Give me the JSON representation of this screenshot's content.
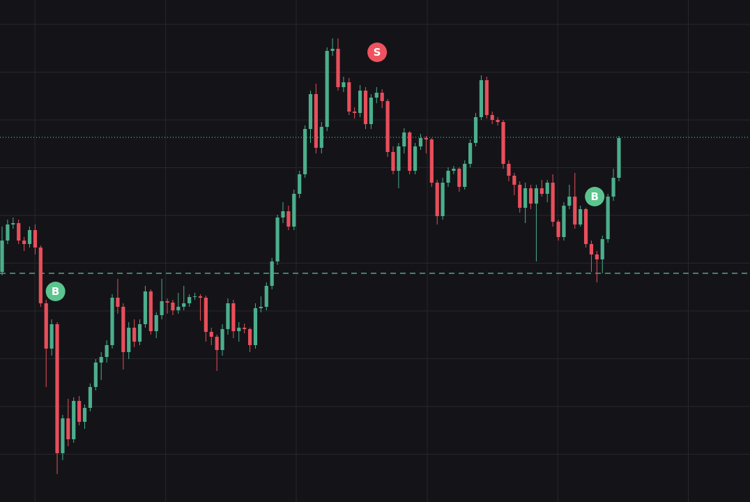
{
  "chart_data": {
    "type": "candlestick",
    "up_color": "#4cae8c",
    "down_color": "#e84f5b",
    "grid": true,
    "xlim": [
      -0.38,
      135.8
    ],
    "ylim": [
      0,
      720
    ],
    "xticks": [
      5.95,
      29.7,
      53.4,
      77.2,
      100.9,
      124.6
    ],
    "yticks": [
      68.5,
      137,
      205.5,
      274,
      342.5,
      411,
      479.5,
      548,
      616.5,
      685
    ],
    "candles": [
      [
        330,
        395,
        325,
        375
      ],
      [
        375,
        405,
        370,
        398
      ],
      [
        398,
        408,
        392,
        400
      ],
      [
        400,
        405,
        370,
        375
      ],
      [
        375,
        380,
        360,
        370
      ],
      [
        370,
        395,
        365,
        390
      ],
      [
        390,
        398,
        355,
        365
      ],
      [
        365,
        368,
        280,
        285
      ],
      [
        285,
        290,
        165,
        220
      ],
      [
        220,
        262,
        210,
        255
      ],
      [
        255,
        258,
        40,
        70
      ],
      [
        70,
        125,
        60,
        120
      ],
      [
        120,
        148,
        80,
        90
      ],
      [
        90,
        150,
        85,
        145
      ],
      [
        145,
        152,
        110,
        115
      ],
      [
        115,
        140,
        105,
        135
      ],
      [
        135,
        170,
        130,
        165
      ],
      [
        165,
        205,
        160,
        200
      ],
      [
        200,
        215,
        175,
        208
      ],
      [
        208,
        232,
        200,
        225
      ],
      [
        225,
        298,
        220,
        293
      ],
      [
        293,
        320,
        270,
        280
      ],
      [
        280,
        285,
        190,
        215
      ],
      [
        215,
        258,
        205,
        250
      ],
      [
        250,
        262,
        222,
        230
      ],
      [
        230,
        262,
        225,
        255
      ],
      [
        255,
        310,
        250,
        302
      ],
      [
        302,
        305,
        240,
        245
      ],
      [
        245,
        272,
        235,
        268
      ],
      [
        268,
        320,
        262,
        288
      ],
      [
        288,
        292,
        270,
        286
      ],
      [
        286,
        290,
        268,
        275
      ],
      [
        275,
        300,
        270,
        280
      ],
      [
        280,
        310,
        275,
        285
      ],
      [
        285,
        298,
        280,
        294
      ],
      [
        294,
        300,
        290,
        295
      ],
      [
        295,
        298,
        260,
        293
      ],
      [
        293,
        296,
        230,
        244
      ],
      [
        244,
        250,
        225,
        237
      ],
      [
        237,
        240,
        188,
        218
      ],
      [
        218,
        255,
        210,
        248
      ],
      [
        248,
        292,
        240,
        285
      ],
      [
        285,
        290,
        235,
        245
      ],
      [
        245,
        258,
        230,
        250
      ],
      [
        250,
        256,
        242,
        248
      ],
      [
        248,
        250,
        215,
        225
      ],
      [
        225,
        285,
        220,
        278
      ],
      [
        278,
        295,
        272,
        280
      ],
      [
        280,
        315,
        275,
        310
      ],
      [
        310,
        350,
        305,
        345
      ],
      [
        345,
        412,
        340,
        408
      ],
      [
        408,
        430,
        400,
        417
      ],
      [
        417,
        425,
        390,
        395
      ],
      [
        395,
        448,
        390,
        442
      ],
      [
        442,
        475,
        436,
        470
      ],
      [
        470,
        540,
        465,
        535
      ],
      [
        535,
        590,
        515,
        585
      ],
      [
        585,
        600,
        500,
        508
      ],
      [
        508,
        545,
        500,
        538
      ],
      [
        538,
        652,
        532,
        647
      ],
      [
        647,
        665,
        640,
        650
      ],
      [
        650,
        665,
        590,
        595
      ],
      [
        595,
        610,
        588,
        602
      ],
      [
        602,
        608,
        555,
        560
      ],
      [
        560,
        566,
        550,
        558
      ],
      [
        558,
        598,
        552,
        590
      ],
      [
        590,
        595,
        535,
        542
      ],
      [
        542,
        585,
        535,
        580
      ],
      [
        580,
        595,
        572,
        587
      ],
      [
        587,
        592,
        565,
        575
      ],
      [
        575,
        578,
        495,
        502
      ],
      [
        502,
        510,
        470,
        475
      ],
      [
        475,
        515,
        450,
        510
      ],
      [
        510,
        536,
        500,
        530
      ],
      [
        530,
        532,
        470,
        475
      ],
      [
        475,
        515,
        470,
        510
      ],
      [
        510,
        528,
        505,
        522
      ],
      [
        522,
        525,
        500,
        520
      ],
      [
        520,
        522,
        452,
        458
      ],
      [
        458,
        462,
        398,
        410
      ],
      [
        410,
        465,
        405,
        458
      ],
      [
        458,
        480,
        452,
        475
      ],
      [
        475,
        482,
        470,
        478
      ],
      [
        478,
        480,
        445,
        452
      ],
      [
        452,
        490,
        448,
        485
      ],
      [
        485,
        520,
        480,
        515
      ],
      [
        515,
        558,
        510,
        552
      ],
      [
        552,
        612,
        548,
        605
      ],
      [
        605,
        610,
        550,
        555
      ],
      [
        555,
        560,
        542,
        548
      ],
      [
        548,
        552,
        540,
        545
      ],
      [
        545,
        548,
        478,
        485
      ],
      [
        485,
        490,
        460,
        468
      ],
      [
        468,
        472,
        440,
        455
      ],
      [
        455,
        460,
        415,
        422
      ],
      [
        422,
        458,
        400,
        450
      ],
      [
        450,
        455,
        420,
        428
      ],
      [
        428,
        455,
        345,
        450
      ],
      [
        450,
        462,
        438,
        442
      ],
      [
        442,
        462,
        430,
        458
      ],
      [
        458,
        470,
        395,
        402
      ],
      [
        402,
        405,
        375,
        380
      ],
      [
        380,
        430,
        375,
        425
      ],
      [
        425,
        455,
        420,
        438
      ],
      [
        438,
        472,
        392,
        398
      ],
      [
        398,
        425,
        395,
        420
      ],
      [
        420,
        422,
        365,
        370
      ],
      [
        370,
        375,
        330,
        355
      ],
      [
        355,
        360,
        315,
        348
      ],
      [
        348,
        382,
        328,
        377
      ],
      [
        377,
        442,
        372,
        438
      ],
      [
        438,
        478,
        432,
        465
      ],
      [
        465,
        525,
        460,
        522
      ]
    ],
    "price_line": {
      "value": 523,
      "color": "#45c2a0"
    },
    "entry_line": {
      "value": 328,
      "color": "#5cc49a"
    },
    "markers": [
      {
        "label": "B",
        "index": 9.7,
        "price": 302,
        "color": "#5cc48f"
      },
      {
        "label": "S",
        "index": 68.1,
        "price": 645,
        "color": "#ef535f"
      },
      {
        "label": "B",
        "index": 107.6,
        "price": 438,
        "color": "#5cc48f"
      }
    ]
  }
}
